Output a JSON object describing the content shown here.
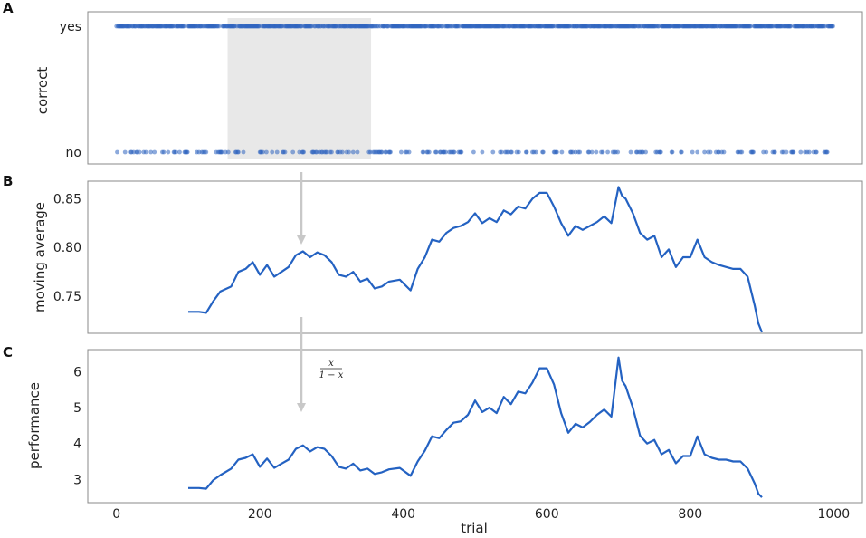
{
  "chart_data": [
    {
      "panel": "A",
      "type": "scatter",
      "ylabel": "correct",
      "yticks": [
        "yes",
        "no"
      ],
      "xlim": [
        -40,
        1040
      ],
      "x_range": [
        0,
        1000
      ],
      "highlight": {
        "x": [
          155,
          355
        ],
        "color": "#e8e8e8"
      },
      "correct_rate_estimate": 0.78,
      "color": "#2f65c0"
    },
    {
      "panel": "B",
      "type": "line",
      "ylabel": "moving average",
      "yticks": [
        "0.75",
        "0.80",
        "0.85"
      ],
      "ytick_values": [
        0.75,
        0.8,
        0.85
      ],
      "ylim": [
        0.712,
        0.868
      ],
      "xlim": [
        -40,
        1040
      ],
      "color": "#2462c2",
      "x": [
        100,
        115,
        125,
        135,
        145,
        160,
        170,
        180,
        190,
        200,
        210,
        220,
        230,
        240,
        250,
        260,
        270,
        280,
        290,
        300,
        310,
        320,
        330,
        340,
        350,
        360,
        370,
        380,
        395,
        410,
        420,
        430,
        440,
        450,
        460,
        470,
        480,
        490,
        500,
        510,
        520,
        530,
        540,
        550,
        560,
        570,
        580,
        590,
        600,
        610,
        620,
        630,
        640,
        650,
        660,
        670,
        680,
        690,
        700,
        705,
        710,
        720,
        730,
        740,
        750,
        760,
        770,
        780,
        790,
        800,
        810,
        820,
        830,
        840,
        850,
        860,
        870,
        880,
        890,
        895,
        900
      ],
      "y": [
        0.734,
        0.734,
        0.733,
        0.745,
        0.755,
        0.76,
        0.775,
        0.778,
        0.785,
        0.772,
        0.782,
        0.77,
        0.775,
        0.78,
        0.792,
        0.796,
        0.79,
        0.795,
        0.792,
        0.785,
        0.772,
        0.77,
        0.775,
        0.765,
        0.768,
        0.758,
        0.76,
        0.765,
        0.767,
        0.756,
        0.778,
        0.79,
        0.808,
        0.806,
        0.815,
        0.82,
        0.822,
        0.826,
        0.835,
        0.825,
        0.83,
        0.826,
        0.838,
        0.834,
        0.842,
        0.84,
        0.85,
        0.856,
        0.856,
        0.842,
        0.825,
        0.812,
        0.822,
        0.818,
        0.822,
        0.826,
        0.832,
        0.825,
        0.862,
        0.853,
        0.85,
        0.835,
        0.815,
        0.808,
        0.812,
        0.79,
        0.798,
        0.78,
        0.79,
        0.79,
        0.808,
        0.79,
        0.785,
        0.782,
        0.78,
        0.778,
        0.778,
        0.77,
        0.74,
        0.722,
        0.713
      ]
    },
    {
      "panel": "C",
      "type": "line",
      "xlabel": "trial",
      "ylabel": "performance",
      "annotation": {
        "numerator": "x",
        "denominator": "1 − x"
      },
      "yticks": [
        "3",
        "4",
        "5",
        "6"
      ],
      "ytick_values": [
        3,
        4,
        5,
        6
      ],
      "ylim": [
        2.35,
        6.62
      ],
      "xticks": [
        "0",
        "200",
        "400",
        "600",
        "800",
        "1000"
      ],
      "xtick_values": [
        0,
        200,
        400,
        600,
        800,
        1000
      ],
      "xlim": [
        -40,
        1040
      ],
      "color": "#2462c2",
      "x": [
        100,
        115,
        125,
        135,
        145,
        160,
        170,
        180,
        190,
        200,
        210,
        220,
        230,
        240,
        250,
        260,
        270,
        280,
        290,
        300,
        310,
        320,
        330,
        340,
        350,
        360,
        370,
        380,
        395,
        410,
        420,
        430,
        440,
        450,
        460,
        470,
        480,
        490,
        500,
        510,
        520,
        530,
        540,
        550,
        560,
        570,
        580,
        590,
        600,
        610,
        620,
        630,
        640,
        650,
        660,
        670,
        680,
        690,
        700,
        705,
        710,
        720,
        730,
        740,
        750,
        760,
        770,
        780,
        790,
        800,
        810,
        820,
        830,
        840,
        850,
        860,
        870,
        880,
        890,
        895,
        900
      ],
      "y": [
        2.76,
        2.76,
        2.74,
        2.98,
        3.12,
        3.3,
        3.55,
        3.6,
        3.7,
        3.35,
        3.58,
        3.32,
        3.44,
        3.55,
        3.85,
        3.95,
        3.78,
        3.9,
        3.85,
        3.65,
        3.35,
        3.3,
        3.44,
        3.25,
        3.3,
        3.15,
        3.2,
        3.28,
        3.32,
        3.1,
        3.5,
        3.8,
        4.2,
        4.15,
        4.38,
        4.58,
        4.62,
        4.8,
        5.2,
        4.88,
        5.0,
        4.85,
        5.3,
        5.1,
        5.45,
        5.4,
        5.7,
        6.1,
        6.1,
        5.65,
        4.85,
        4.3,
        4.55,
        4.45,
        4.6,
        4.8,
        4.95,
        4.75,
        6.4,
        5.75,
        5.6,
        5.0,
        4.22,
        4.0,
        4.1,
        3.7,
        3.82,
        3.45,
        3.65,
        3.65,
        4.2,
        3.7,
        3.6,
        3.55,
        3.55,
        3.5,
        3.5,
        3.3,
        2.88,
        2.6,
        2.5
      ]
    }
  ]
}
